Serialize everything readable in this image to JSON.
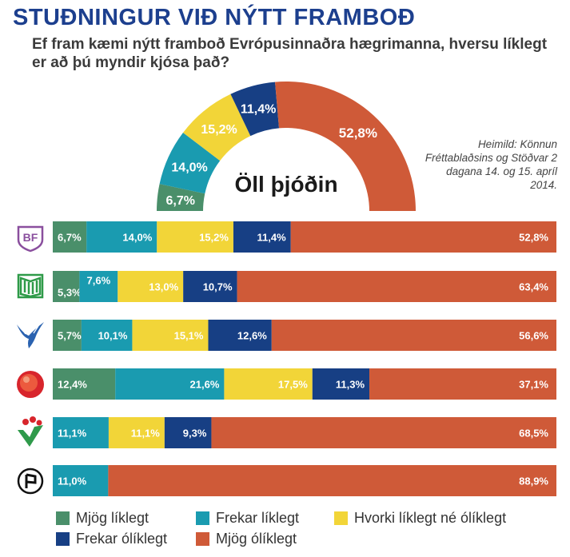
{
  "title": "STUÐNINGUR VIÐ NÝTT FRAMBOÐ",
  "subtitle": "Ef fram kæmi nýtt framboð Evrópusinnaðra hægrimanna, hversu líklegt er að þú myndir kjósa það?",
  "source": "Heimild: Könnun Fréttablaðsins og Stöðvar 2 dagana 14. og 15. apríl 2014.",
  "colors": {
    "mjog_liklegt": "#4a8f6a",
    "frekar_liklegt": "#1a9bb0",
    "hvorki": "#f2d538",
    "frekar_oliklegt": "#173f84",
    "mjog_oliklegt": "#cf5a38"
  },
  "chart_data": [
    {
      "type": "pie",
      "subtype": "half-donut",
      "title": "Öll þjóðin",
      "labels": [
        "Mjög líklegt",
        "Frekar líklegt",
        "Hvorki líklegt né ólíklegt",
        "Frekar ólíklegt",
        "Mjög ólíklegt"
      ],
      "values": [
        6.7,
        14.0,
        15.2,
        11.4,
        52.8
      ],
      "value_labels": [
        "6,7%",
        "14,0%",
        "15,2%",
        "11,4%",
        "52,8%"
      ]
    },
    {
      "type": "bar",
      "orientation": "horizontal",
      "stacked": true,
      "categories": [
        "bf-logo",
        "framsokn-logo",
        "sjalfstaedis-logo",
        "samfylking-logo",
        "vinstri-graen-logo",
        "piratar-logo"
      ],
      "xlim": [
        0,
        100
      ],
      "series": [
        {
          "name": "Mjög líklegt",
          "color": "#4a8f6a",
          "values": [
            6.7,
            5.3,
            5.7,
            12.4,
            0,
            0
          ],
          "labels": [
            "6,7%",
            "5,3%",
            "5,7%",
            "12,4%",
            "",
            ""
          ]
        },
        {
          "name": "Frekar líklegt",
          "color": "#1a9bb0",
          "values": [
            14.0,
            7.6,
            10.1,
            21.6,
            11.1,
            11.0
          ],
          "labels": [
            "14,0%",
            "7,6%",
            "10,1%",
            "21,6%",
            "11,1%",
            "11,0%"
          ]
        },
        {
          "name": "Hvorki líklegt né ólíklegt",
          "color": "#f2d538",
          "values": [
            15.2,
            13.0,
            15.1,
            17.5,
            11.1,
            0
          ],
          "labels": [
            "15,2%",
            "13,0%",
            "15,1%",
            "17,5%",
            "11,1%",
            ""
          ]
        },
        {
          "name": "Frekar ólíklegt",
          "color": "#173f84",
          "values": [
            11.4,
            10.7,
            12.6,
            11.3,
            9.3,
            0
          ],
          "labels": [
            "11,4%",
            "10,7%",
            "12,6%",
            "11,3%",
            "9,3%",
            ""
          ]
        },
        {
          "name": "Mjög ólíklegt",
          "color": "#cf5a38",
          "values": [
            52.8,
            63.4,
            56.6,
            37.1,
            68.5,
            88.9
          ],
          "labels": [
            "52,8%",
            "63,4%",
            "56,6%",
            "37,1%",
            "68,5%",
            "88,9%"
          ]
        }
      ]
    }
  ],
  "logos": {
    "bf": "BF"
  },
  "legend": [
    {
      "label": "Mjög líklegt",
      "color": "#4a8f6a"
    },
    {
      "label": "Frekar líklegt",
      "color": "#1a9bb0"
    },
    {
      "label": "Hvorki líklegt né ólíklegt",
      "color": "#f2d538"
    },
    {
      "label": "Frekar ólíklegt",
      "color": "#173f84"
    },
    {
      "label": "Mjög ólíklegt",
      "color": "#cf5a38"
    }
  ]
}
